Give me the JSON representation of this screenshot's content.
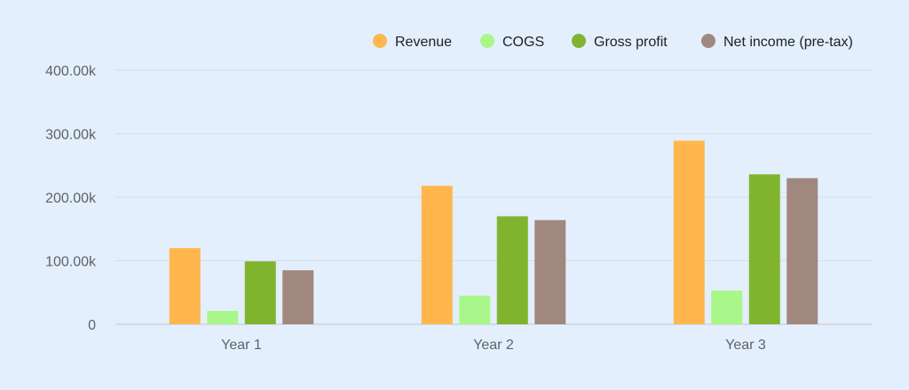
{
  "chart_data": {
    "type": "bar",
    "title": "",
    "xlabel": "",
    "ylabel": "",
    "categories": [
      "Year 1",
      "Year 2",
      "Year 3"
    ],
    "ylim": [
      0,
      400000
    ],
    "yticks": [
      0,
      100000,
      200000,
      300000,
      400000
    ],
    "ytick_labels": [
      "0",
      "100.00k",
      "200.00k",
      "300.00k",
      "400.00k"
    ],
    "grid": true,
    "legend_position": "top-right",
    "series": [
      {
        "name": "Revenue",
        "color": "#ffb74d",
        "values": [
          120000,
          218000,
          289000
        ]
      },
      {
        "name": "COGS",
        "color": "#a9f78a",
        "values": [
          21000,
          45000,
          53000
        ]
      },
      {
        "name": "Gross profit",
        "color": "#80b42f",
        "values": [
          99000,
          170000,
          236000
        ]
      },
      {
        "name": "Net income (pre-tax)",
        "color": "#a1887f",
        "values": [
          85000,
          164000,
          230000
        ]
      }
    ]
  }
}
